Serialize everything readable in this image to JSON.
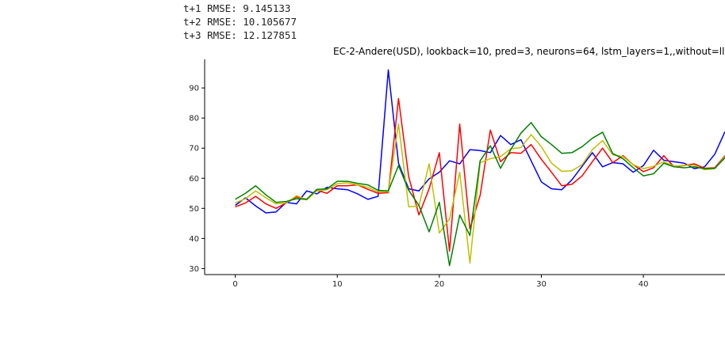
{
  "metrics": [
    {
      "label": "t+1 RMSE: 9.145133"
    },
    {
      "label": "t+2 RMSE: 10.105677"
    },
    {
      "label": "t+3 RMSE: 12.127851"
    }
  ],
  "chart_data": {
    "type": "line",
    "title": "EC-2-Andere(USD), lookback=10, pred=3, neurons=64, lstm_layers=1,,without=ll",
    "xlabel": "",
    "ylabel": "",
    "xlim": [
      -3,
      48
    ],
    "ylim": [
      28,
      99.5
    ],
    "xticks": [
      0,
      10,
      20,
      30,
      40
    ],
    "yticks": [
      30,
      40,
      50,
      60,
      70,
      80,
      90
    ],
    "grid": false,
    "series": [
      {
        "color": "#0000ff",
        "x": [
          0,
          1,
          2,
          3,
          4,
          5,
          6,
          7,
          8,
          9,
          10,
          11,
          12,
          13,
          14,
          15,
          16,
          17,
          18,
          19,
          20,
          21,
          22,
          23,
          24,
          25,
          26,
          27,
          28,
          29,
          30,
          31,
          32,
          33,
          34,
          35,
          36,
          37,
          38,
          39,
          40,
          41,
          42,
          43,
          44,
          45,
          46,
          47,
          48
        ],
        "y": [
          51,
          53.5,
          50.8,
          48.5,
          48.8,
          52,
          51.5,
          55.8,
          54.8,
          57,
          56.5,
          56.2,
          54.8,
          53,
          54,
          96,
          65,
          56.5,
          55.8,
          59.8,
          62,
          65.8,
          64.8,
          69.5,
          69.2,
          68.5,
          74.2,
          71.2,
          72.8,
          65.8,
          58.8,
          56.5,
          56.2,
          59.5,
          64,
          68.5,
          63.8,
          65.2,
          64.8,
          62,
          64.2,
          69.3,
          66,
          65.5,
          65,
          63.2,
          63.8,
          68,
          75.5
        ]
      },
      {
        "color": "#ff0000",
        "x": [
          0,
          1,
          2,
          3,
          4,
          5,
          6,
          7,
          8,
          9,
          10,
          11,
          12,
          13,
          14,
          15,
          16,
          17,
          18,
          19,
          20,
          21,
          22,
          23,
          24,
          25,
          26,
          27,
          28,
          29,
          30,
          31,
          32,
          33,
          34,
          35,
          36,
          37,
          38,
          39,
          40,
          41,
          42,
          43,
          44,
          45,
          46,
          47,
          48
        ],
        "y": [
          50.5,
          51.8,
          54,
          51.5,
          50,
          51.8,
          53.8,
          53,
          56,
          55,
          57.5,
          57.5,
          57.8,
          56.3,
          55,
          55.2,
          86.5,
          60.5,
          47.8,
          56.5,
          68.5,
          35.8,
          78,
          43.2,
          54.3,
          76,
          65.5,
          68.5,
          68.3,
          71.2,
          66.3,
          62,
          57.5,
          58,
          60.8,
          65.5,
          70,
          65.2,
          67.5,
          64.5,
          62.2,
          63.5,
          67.5,
          63.8,
          64.2,
          64.8,
          63.3,
          63.5,
          67.5
        ]
      },
      {
        "color": "#bfbf00",
        "x": [
          0,
          1,
          2,
          3,
          4,
          5,
          6,
          7,
          8,
          9,
          10,
          11,
          12,
          13,
          14,
          15,
          16,
          17,
          18,
          19,
          20,
          21,
          22,
          23,
          24,
          25,
          26,
          27,
          28,
          29,
          30,
          31,
          32,
          33,
          34,
          35,
          36,
          37,
          38,
          39,
          40,
          41,
          42,
          43,
          44,
          45,
          46,
          47,
          48
        ],
        "y": [
          51.8,
          53.2,
          55.8,
          53.5,
          51.5,
          51.8,
          54.2,
          52.8,
          55.8,
          56.2,
          58.2,
          58.5,
          57.8,
          57,
          55.5,
          55.5,
          78,
          50.5,
          50.8,
          64.8,
          41.8,
          46.5,
          62,
          31.8,
          65.2,
          66.5,
          67.2,
          69.8,
          70.2,
          74.5,
          70.5,
          65,
          62.3,
          62.5,
          64.5,
          69.5,
          72.5,
          67.8,
          67.2,
          64.5,
          63.2,
          64,
          65.5,
          64,
          64.3,
          64.3,
          62.8,
          63.2,
          67.2
        ]
      },
      {
        "color": "#008000",
        "x": [
          0,
          1,
          2,
          3,
          4,
          5,
          6,
          7,
          8,
          9,
          10,
          11,
          12,
          13,
          14,
          15,
          16,
          17,
          18,
          19,
          20,
          21,
          22,
          23,
          24,
          25,
          26,
          27,
          28,
          29,
          30,
          31,
          32,
          33,
          34,
          35,
          36,
          37,
          38,
          39,
          40,
          41,
          42,
          43,
          44,
          45,
          46,
          47,
          48
        ],
        "y": [
          53,
          55,
          57.5,
          54.5,
          52,
          52.3,
          53.2,
          53,
          56.3,
          56.5,
          59,
          59,
          58.3,
          57.8,
          56,
          55.8,
          64.2,
          56,
          51,
          42.2,
          52,
          31,
          47.8,
          41,
          65.8,
          70.8,
          63.3,
          69.5,
          75,
          78.5,
          73.8,
          71.2,
          68.3,
          68.5,
          70.5,
          73.3,
          75.3,
          68.2,
          66.5,
          63.5,
          60.8,
          61.5,
          65,
          63.8,
          63.5,
          63.8,
          63.2,
          63.3,
          66.8
        ]
      }
    ]
  }
}
